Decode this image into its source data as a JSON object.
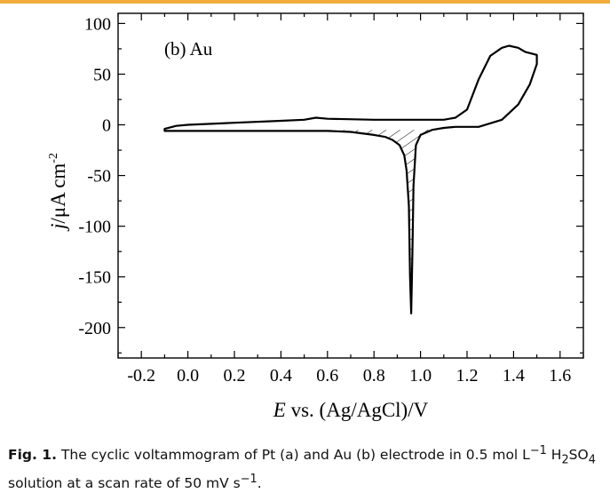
{
  "chart_data": {
    "type": "line",
    "panel_label": "(b) Au",
    "xlabel_italic": "E",
    "xlabel_rest": " vs. (Ag/AgCl)/V",
    "ylabel_italic": "j",
    "ylabel_rest": "/μA cm",
    "ylabel_sup": "-2",
    "xlim": [
      -0.3,
      1.7
    ],
    "ylim": [
      -230,
      110
    ],
    "xticks": [
      -0.2,
      0.0,
      0.2,
      0.4,
      0.6,
      0.8,
      1.0,
      1.2,
      1.4,
      1.6
    ],
    "xtick_labels": [
      "-0.2",
      "0.0",
      "0.2",
      "0.4",
      "0.6",
      "0.8",
      "1.0",
      "1.2",
      "1.4",
      "1.6"
    ],
    "yticks": [
      100,
      50,
      0,
      -50,
      -100,
      -150,
      -200
    ],
    "ytick_labels": [
      "100",
      "50",
      "0",
      "-50",
      "-100",
      "-150",
      "-200"
    ],
    "grid": false,
    "series": [
      {
        "x": [
          -0.1,
          -0.05,
          0.0,
          0.2,
          0.4,
          0.5,
          0.55,
          0.6,
          0.8,
          1.0,
          1.1,
          1.15,
          1.2,
          1.25,
          1.3,
          1.35,
          1.38,
          1.42,
          1.45,
          1.5,
          1.5,
          1.47,
          1.42,
          1.35,
          1.25,
          1.15,
          1.1,
          1.05,
          1.0,
          0.98,
          0.97,
          0.965,
          0.96,
          0.955,
          0.95,
          0.94,
          0.93,
          0.91,
          0.88,
          0.85,
          0.8,
          0.7,
          0.6,
          0.4,
          0.2,
          0.0,
          -0.1
        ],
        "y": [
          -4,
          -1,
          0,
          2,
          4,
          5,
          7,
          6,
          5,
          5,
          5,
          7,
          15,
          45,
          68,
          76,
          78,
          76,
          72,
          69,
          60,
          40,
          20,
          5,
          -2,
          -2,
          -3,
          -5,
          -10,
          -20,
          -60,
          -130,
          -186,
          -150,
          -80,
          -45,
          -30,
          -20,
          -15,
          -12,
          -10,
          -7,
          -6,
          -6,
          -6,
          -6,
          -6
        ]
      }
    ],
    "hatched_region": {
      "upper_x": [
        0.6,
        0.8,
        1.0,
        1.1
      ],
      "upper_y": [
        -5,
        -5,
        -5,
        -4
      ]
    }
  },
  "caption": {
    "label": "Fig. 1.",
    "t1": " The cyclic voltammogram of Pt (a) and Au (b) electrode in 0.5 mol L",
    "s1": "−1",
    "t2": " H",
    "sub1": "2",
    "t3": "SO",
    "sub2": "4",
    "t4": " solution at a scan rate of 50 mV s",
    "s2": "−1",
    "t5": "."
  }
}
